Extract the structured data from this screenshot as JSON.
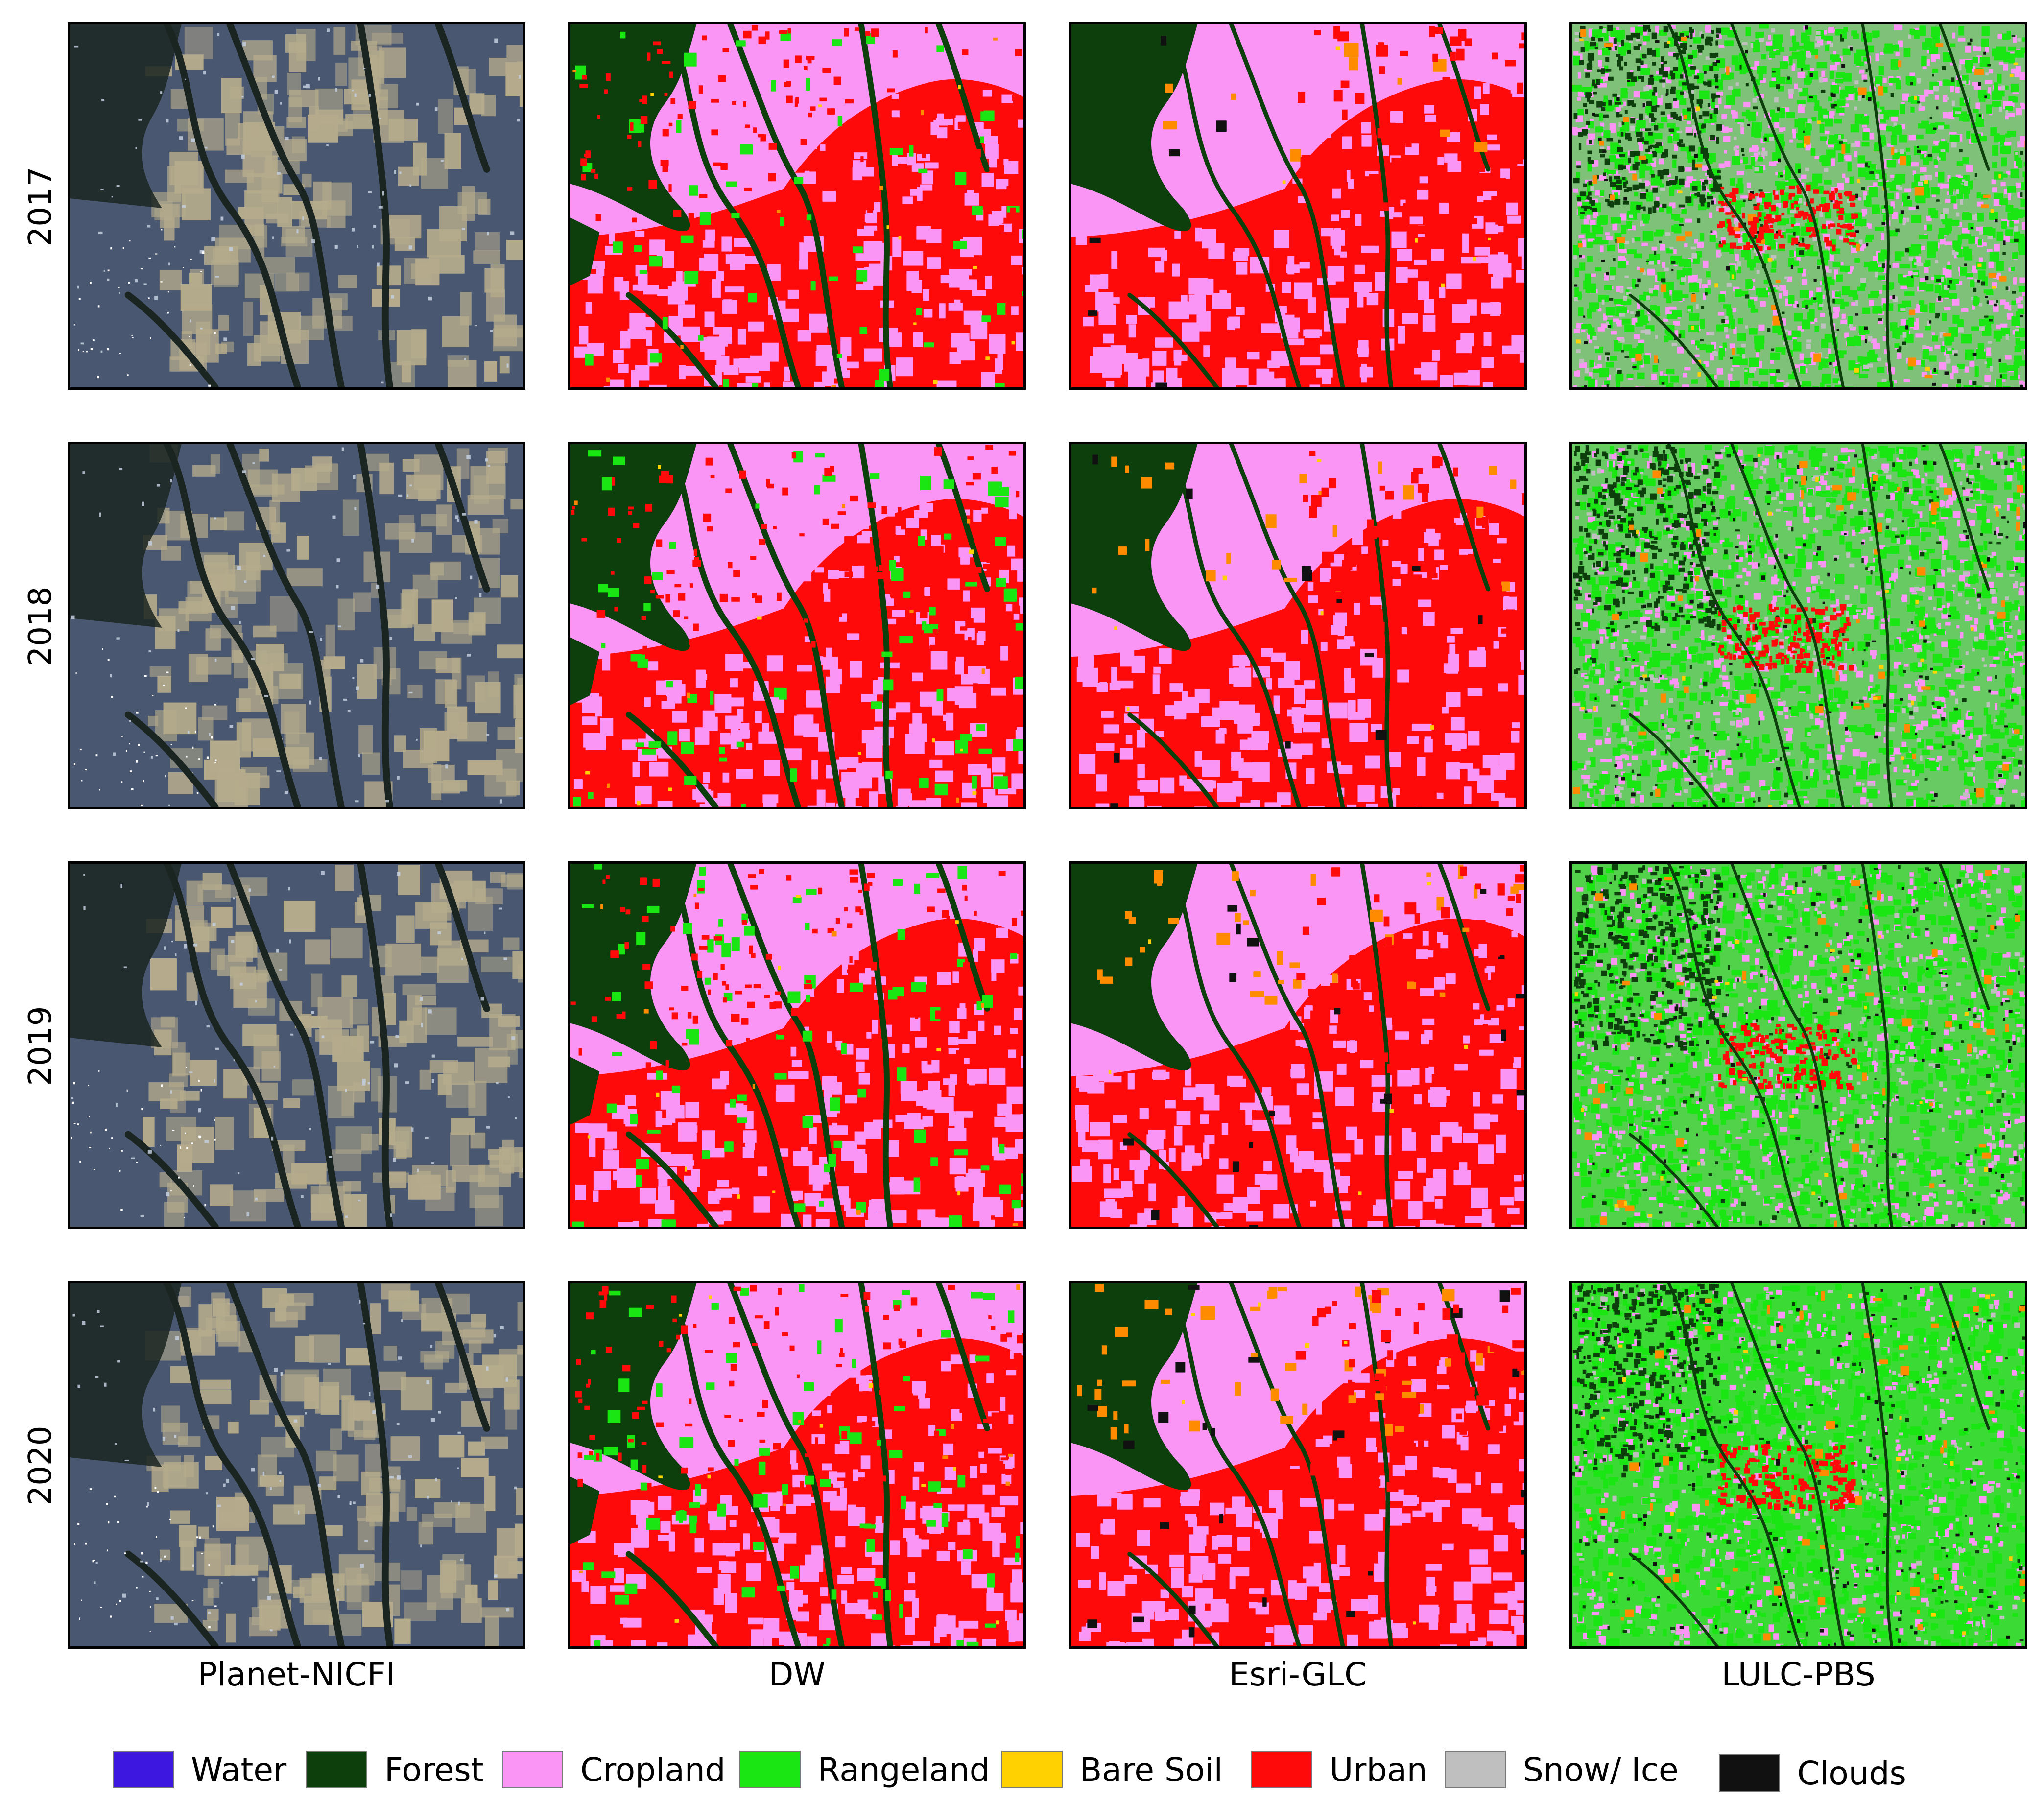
{
  "rows": [
    {
      "label": "2017"
    },
    {
      "label": "2018"
    },
    {
      "label": "2019"
    },
    {
      "label": "2020"
    }
  ],
  "columns": [
    {
      "label": "Planet-NICFI",
      "kind": "satellite"
    },
    {
      "label": "DW",
      "kind": "dw"
    },
    {
      "label": "Esri-GLC",
      "kind": "esri"
    },
    {
      "label": "LULC-PBS",
      "kind": "pbs"
    }
  ],
  "legend": [
    {
      "label": "Water",
      "color": "#3d17e0"
    },
    {
      "label": "Forest",
      "color": "#0c3f0c"
    },
    {
      "label": "Cropland",
      "color": "#fa94f5"
    },
    {
      "label": "Rangeland",
      "color": "#19e612"
    },
    {
      "label": "Bare Soil",
      "color": "#ffd100"
    },
    {
      "label": "Urban",
      "color": "#ff0a0a"
    },
    {
      "label": "Snow/ Ice",
      "color": "#bfbfbf"
    },
    {
      "label": "Clouds",
      "color": "#111111"
    }
  ],
  "extra_colors": {
    "orange_patches": "#ff8c00",
    "satellite_base": "#4a5770",
    "satellite_fields": "#b5ab8c",
    "satellite_dark": "#1a2420",
    "satellite_town": "#c3cede"
  }
}
